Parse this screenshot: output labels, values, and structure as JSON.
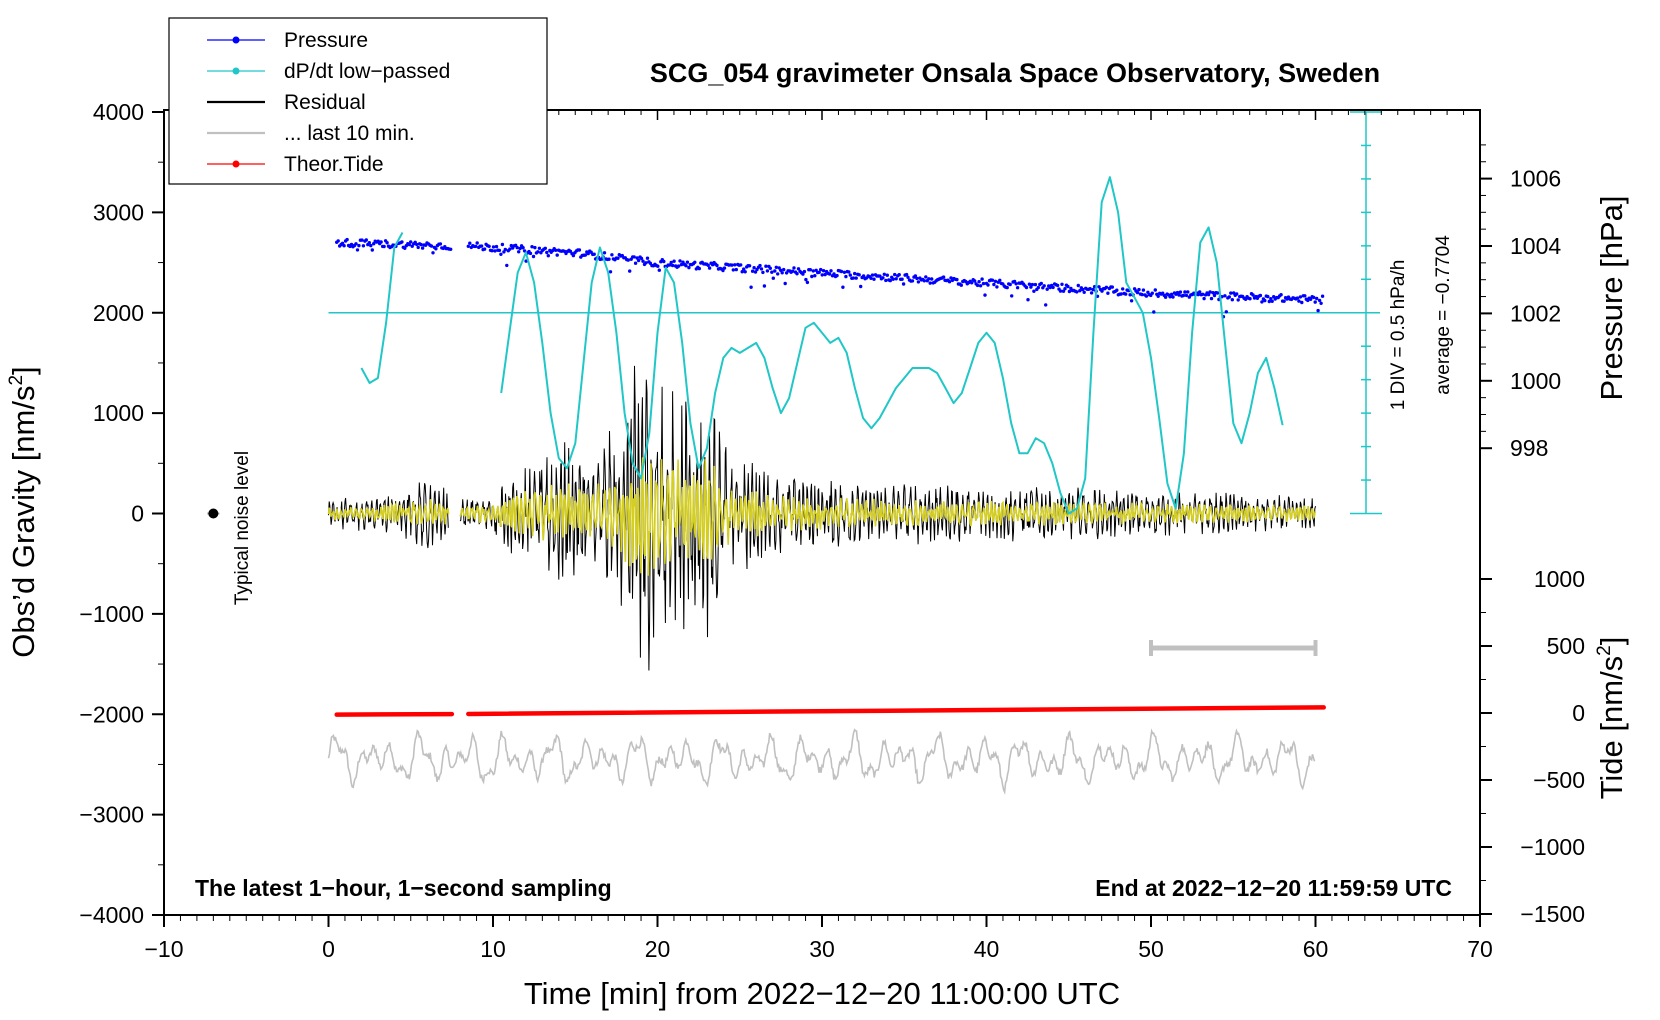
{
  "chart_data": {
    "type": "line",
    "title": "SCG_054 gravimeter Onsala Space Observatory, Sweden",
    "xlabel": "Time [min] from 2022−12−20 11:00:00 UTC",
    "ylabel_left": "Obs’d Gravity [nm/s²]",
    "ylabel_pressure": "Pressure [hPa]",
    "ylabel_tide": "Tide [nm/s²]",
    "xlim": [
      -10,
      70
    ],
    "ylim_gravity": [
      -4000,
      4000
    ],
    "x_ticks": [
      "−10",
      "0",
      "10",
      "20",
      "30",
      "40",
      "50",
      "60",
      "70"
    ],
    "x_tick_values": [
      -10,
      0,
      10,
      20,
      30,
      40,
      50,
      60,
      70
    ],
    "y_ticks": [
      "4000",
      "3000",
      "2000",
      "1000",
      "0",
      "−1000",
      "−2000",
      "−3000",
      "−4000"
    ],
    "y_tick_values": [
      4000,
      3000,
      2000,
      1000,
      0,
      -1000,
      -2000,
      -3000,
      -4000
    ],
    "pressure_ticks": [
      "1006",
      "1004",
      "1002",
      "1000",
      "998"
    ],
    "pressure_tick_values": [
      1006,
      1004,
      1002,
      1000,
      998
    ],
    "tide_ticks": [
      "1000",
      "500",
      "0",
      "−500",
      "−1000",
      "−1500"
    ],
    "tide_tick_values": [
      1000,
      500,
      0,
      -500,
      -1000,
      -1500
    ],
    "legend": [
      {
        "label": "Pressure",
        "color": "#0000ff",
        "marker": true
      },
      {
        "label": "dP/dt low−passed",
        "color": "#21c7c7",
        "marker": true
      },
      {
        "label": "Residual",
        "color": "#000000",
        "marker": false
      },
      {
        "label": "... last 10 min.",
        "color": "#c0c0c0",
        "marker": false
      },
      {
        "label": "Theor.Tide",
        "color": "#ff0000",
        "marker": true
      }
    ],
    "dpdt_scale_label": "1 DIV = 0.5 hPa/h",
    "dpdt_average_label": "average = −0.7704",
    "noise_label": "Typical noise level",
    "footer_left": "The latest 1−hour, 1−second sampling",
    "footer_right": "End at 2022−12−20 11:59:59 UTC",
    "series": [
      {
        "name": "Pressure",
        "unit": "hPa",
        "x": [
          0.5,
          7.5,
          8.5,
          15,
          20,
          30,
          40,
          50,
          60.5
        ],
        "values": [
          1004.1,
          1004.0,
          1004.0,
          1003.8,
          1003.5,
          1003.2,
          1002.9,
          1002.6,
          1002.4
        ]
      },
      {
        "name": "dP/dt low-passed",
        "unit": "gravity-axis units (1 DIV = 0.5 hPa/h)",
        "x": [
          2,
          2.5,
          3,
          3.5,
          4,
          4.5
        ],
        "values": [
          1450,
          1300,
          1350,
          1900,
          2650,
          2800
        ]
      },
      {
        "name": "dP/dt low-passed",
        "x": [
          10.5,
          11,
          11.5,
          12,
          12.5,
          13,
          13.5,
          14,
          14.5,
          15,
          15.5,
          16,
          16.5,
          17,
          17.5,
          18,
          18.5,
          19,
          19.5,
          20,
          20.5,
          21,
          21.5,
          22,
          22.5,
          23,
          23.5,
          24,
          24.5,
          25,
          25.5,
          26,
          26.5,
          27,
          27.5,
          28,
          28.5,
          29,
          29.5,
          30,
          30.5,
          31,
          31.5,
          32,
          32.5,
          33,
          33.5,
          34,
          34.5,
          35,
          35.5,
          36,
          36.5,
          37,
          37.5,
          38,
          38.5,
          39,
          39.5,
          40,
          40.5,
          41,
          41.5,
          42,
          42.5,
          43,
          43.5,
          44,
          44.5,
          45,
          45.5,
          46,
          46.5,
          47,
          47.5,
          48,
          48.5,
          49,
          49.5,
          50,
          50.5,
          51,
          51.5,
          52,
          52.5,
          53,
          53.5,
          54,
          54.5,
          55,
          55.5,
          56,
          56.5,
          57,
          57.5,
          58
        ],
        "values": [
          1200,
          1800,
          2400,
          2600,
          2300,
          1700,
          1000,
          550,
          450,
          700,
          1500,
          2300,
          2650,
          2400,
          1800,
          1000,
          500,
          350,
          800,
          1800,
          2450,
          2300,
          1700,
          900,
          450,
          650,
          1200,
          1550,
          1650,
          1600,
          1650,
          1700,
          1550,
          1250,
          1000,
          1150,
          1500,
          1850,
          1900,
          1800,
          1700,
          1750,
          1600,
          1250,
          950,
          850,
          950,
          1100,
          1250,
          1350,
          1450,
          1450,
          1450,
          1400,
          1250,
          1100,
          1200,
          1450,
          1700,
          1800,
          1700,
          1350,
          900,
          600,
          600,
          750,
          700,
          500,
          200,
          0,
          50,
          350,
          1800,
          3100,
          3350,
          3000,
          2300,
          2150,
          2000,
          1550,
          950,
          300,
          50,
          600,
          1800,
          2700,
          2850,
          2500,
          1700,
          900,
          700,
          1000,
          1400,
          1550,
          1250,
          880
        ]
      },
      {
        "name": "Residual (envelope)",
        "unit": "nm/s²",
        "x": [
          0,
          3,
          6,
          7.5,
          8,
          10,
          12,
          14,
          16,
          18,
          19,
          19.5,
          20,
          21,
          22,
          23,
          24,
          27,
          30,
          35,
          40,
          45,
          50,
          55,
          60
        ],
        "values": [
          150,
          180,
          350,
          250,
          150,
          250,
          500,
          700,
          600,
          1000,
          1800,
          1500,
          1200,
          1300,
          1100,
          1300,
          700,
          400,
          350,
          300,
          280,
          260,
          220,
          200,
          170
        ]
      },
      {
        "name": "Last 10 min (repeated)",
        "unit": "nm/s²",
        "x": [
          0,
          60
        ],
        "values": [
          -2450,
          -2450
        ]
      },
      {
        "name": "Theor.Tide",
        "unit": "nm/s²",
        "x": [
          0.5,
          7.5,
          8.5,
          20,
          30,
          40,
          50,
          60.5
        ],
        "values": [
          -12,
          -8,
          -7,
          4,
          15,
          25,
          34,
          42
        ]
      }
    ]
  }
}
